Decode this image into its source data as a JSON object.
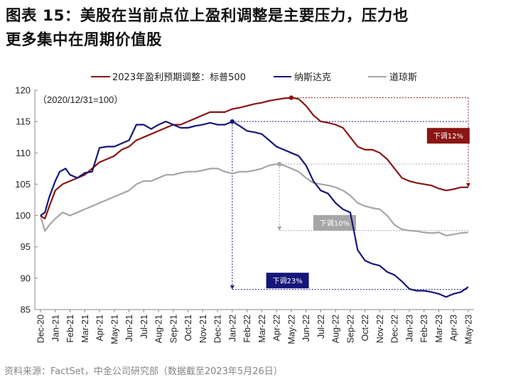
{
  "title": {
    "line1": "图表 15：美股在当前点位上盈利调整是主要压力，压力也",
    "line2": "更多集中在周期价值股"
  },
  "colors": {
    "sp500": "#8B1414",
    "nasdaq": "#16167A",
    "dow": "#A6A6A6"
  },
  "chart_data": {
    "type": "line",
    "title": "",
    "base_note": "（2020/12/31=100）",
    "ylim": [
      85,
      120
    ],
    "yticks": [
      85,
      90,
      95,
      100,
      105,
      110,
      115,
      120
    ],
    "xlabel": "",
    "ylabel": "",
    "x_tick_labels": [
      "Dec-20",
      "Jan-21",
      "Feb-21",
      "Mar-21",
      "Apr-21",
      "May-21",
      "Jun-21",
      "Jul-21",
      "Aug-21",
      "Sep-21",
      "Oct-21",
      "Nov-21",
      "Dec-21",
      "Jan-22",
      "Feb-22",
      "Mar-22",
      "Apr-22",
      "May-22",
      "Jun-22",
      "Jul-22",
      "Aug-22",
      "Sep-22",
      "Oct-22",
      "Nov-22",
      "Dec-22",
      "Jan-23",
      "Feb-23",
      "Mar-23",
      "Apr-23",
      "May-23"
    ],
    "legend_position": "top",
    "series": [
      {
        "name": "2023年盈利预期调整：标普500",
        "color_key": "sp500",
        "points": [
          [
            0,
            100
          ],
          [
            0.3,
            99.5
          ],
          [
            0.6,
            101.5
          ],
          [
            1,
            104
          ],
          [
            1.5,
            105
          ],
          [
            2,
            105.5
          ],
          [
            2.5,
            106
          ],
          [
            3,
            106.5
          ],
          [
            3.5,
            107.5
          ],
          [
            4,
            108.5
          ],
          [
            4.5,
            109
          ],
          [
            5,
            109.5
          ],
          [
            5.5,
            110.5
          ],
          [
            6,
            111
          ],
          [
            6.5,
            112
          ],
          [
            7,
            112.5
          ],
          [
            7.5,
            113
          ],
          [
            8,
            113.5
          ],
          [
            8.5,
            114
          ],
          [
            9,
            114.5
          ],
          [
            9.5,
            114.5
          ],
          [
            10,
            115
          ],
          [
            10.5,
            115.5
          ],
          [
            11,
            116
          ],
          [
            11.5,
            116.5
          ],
          [
            12,
            116.5
          ],
          [
            12.5,
            116.5
          ],
          [
            13,
            117
          ],
          [
            13.5,
            117.2
          ],
          [
            14,
            117.5
          ],
          [
            14.5,
            117.8
          ],
          [
            15,
            118
          ],
          [
            15.5,
            118.3
          ],
          [
            16,
            118.5
          ],
          [
            16.5,
            118.7
          ],
          [
            17,
            118.8
          ],
          [
            17.5,
            118.6
          ],
          [
            18,
            117.5
          ],
          [
            18.5,
            116
          ],
          [
            19,
            115
          ],
          [
            19.5,
            114.8
          ],
          [
            20,
            114.5
          ],
          [
            20.5,
            114
          ],
          [
            21,
            112.5
          ],
          [
            21.5,
            111
          ],
          [
            22,
            110.5
          ],
          [
            22.5,
            110.5
          ],
          [
            23,
            110
          ],
          [
            23.5,
            109
          ],
          [
            24,
            107.5
          ],
          [
            24.5,
            106
          ],
          [
            25,
            105.5
          ],
          [
            25.5,
            105.2
          ],
          [
            26,
            105
          ],
          [
            26.5,
            104.8
          ],
          [
            27,
            104.3
          ],
          [
            27.5,
            104
          ],
          [
            28,
            104.2
          ],
          [
            28.5,
            104.5
          ],
          [
            29,
            104.5
          ]
        ]
      },
      {
        "name": "纳斯达克",
        "color_key": "nasdaq",
        "points": [
          [
            0,
            100
          ],
          [
            0.3,
            100.5
          ],
          [
            0.6,
            103
          ],
          [
            1,
            105.5
          ],
          [
            1.3,
            107
          ],
          [
            1.7,
            107.5
          ],
          [
            2,
            106.5
          ],
          [
            2.5,
            106
          ],
          [
            3,
            106.8
          ],
          [
            3.5,
            107
          ],
          [
            4,
            110.8
          ],
          [
            4.5,
            111
          ],
          [
            5,
            111
          ],
          [
            5.5,
            111.5
          ],
          [
            6,
            112
          ],
          [
            6.5,
            114.5
          ],
          [
            7,
            114.5
          ],
          [
            7.5,
            113.8
          ],
          [
            8,
            114.5
          ],
          [
            8.5,
            115
          ],
          [
            9,
            114.5
          ],
          [
            9.5,
            114
          ],
          [
            10,
            114
          ],
          [
            10.5,
            114.3
          ],
          [
            11,
            114.5
          ],
          [
            11.5,
            114.8
          ],
          [
            12,
            114.5
          ],
          [
            12.5,
            114.5
          ],
          [
            13,
            115
          ],
          [
            13.5,
            114.3
          ],
          [
            14,
            113.5
          ],
          [
            14.5,
            113.3
          ],
          [
            15,
            113
          ],
          [
            15.5,
            112
          ],
          [
            16,
            111
          ],
          [
            16.5,
            110.5
          ],
          [
            17,
            110
          ],
          [
            17.5,
            109.5
          ],
          [
            18,
            108
          ],
          [
            18.5,
            105.5
          ],
          [
            19,
            104
          ],
          [
            19.5,
            103.5
          ],
          [
            20,
            102
          ],
          [
            20.5,
            101
          ],
          [
            21,
            100.5
          ],
          [
            21.5,
            94.5
          ],
          [
            22,
            92.8
          ],
          [
            22.5,
            92.3
          ],
          [
            23,
            92
          ],
          [
            23.5,
            91
          ],
          [
            24,
            90.5
          ],
          [
            24.5,
            89.5
          ],
          [
            25,
            88.3
          ],
          [
            25.5,
            88
          ],
          [
            26,
            88
          ],
          [
            26.5,
            87.8
          ],
          [
            27,
            87.5
          ],
          [
            27.5,
            87
          ],
          [
            28,
            87.5
          ],
          [
            28.5,
            87.8
          ],
          [
            29,
            88.6
          ]
        ]
      },
      {
        "name": "道琼斯",
        "color_key": "dow",
        "points": [
          [
            0,
            100
          ],
          [
            0.3,
            97.5
          ],
          [
            0.6,
            98.5
          ],
          [
            1,
            99.5
          ],
          [
            1.5,
            100.5
          ],
          [
            2,
            100
          ],
          [
            2.5,
            100.5
          ],
          [
            3,
            101
          ],
          [
            3.5,
            101.5
          ],
          [
            4,
            102
          ],
          [
            4.5,
            102.5
          ],
          [
            5,
            103
          ],
          [
            5.5,
            103.5
          ],
          [
            6,
            104
          ],
          [
            6.5,
            105
          ],
          [
            7,
            105.5
          ],
          [
            7.5,
            105.5
          ],
          [
            8,
            106
          ],
          [
            8.5,
            106.5
          ],
          [
            9,
            106.5
          ],
          [
            9.5,
            106.8
          ],
          [
            10,
            107
          ],
          [
            10.5,
            107
          ],
          [
            11,
            107.2
          ],
          [
            11.5,
            107.5
          ],
          [
            12,
            107.5
          ],
          [
            12.5,
            107
          ],
          [
            13,
            106.7
          ],
          [
            13.5,
            107
          ],
          [
            14,
            107
          ],
          [
            14.5,
            107.2
          ],
          [
            15,
            107.5
          ],
          [
            15.5,
            108
          ],
          [
            16,
            108.2
          ],
          [
            16.5,
            108
          ],
          [
            17,
            107.5
          ],
          [
            17.5,
            107
          ],
          [
            18,
            106
          ],
          [
            18.5,
            105.2
          ],
          [
            19,
            105
          ],
          [
            19.5,
            104.8
          ],
          [
            20,
            104.5
          ],
          [
            20.5,
            104
          ],
          [
            21,
            103.2
          ],
          [
            21.5,
            102
          ],
          [
            22,
            101.5
          ],
          [
            22.5,
            101.2
          ],
          [
            23,
            101
          ],
          [
            23.5,
            100
          ],
          [
            24,
            98.5
          ],
          [
            24.5,
            97.8
          ],
          [
            25,
            97.6
          ],
          [
            25.5,
            97.5
          ],
          [
            26,
            97.3
          ],
          [
            26.5,
            97.2
          ],
          [
            27,
            97.3
          ],
          [
            27.5,
            96.8
          ],
          [
            28,
            97
          ],
          [
            28.5,
            97.2
          ],
          [
            29,
            97.3
          ]
        ]
      }
    ],
    "annotations": [
      {
        "label": "下调12%",
        "color_key": "sp500",
        "from": [
          17,
          118.8
        ],
        "to": [
          29,
          104.5
        ],
        "box_x": 26.2,
        "box_y": 112.5
      },
      {
        "label": "下调10%",
        "color_key": "dow",
        "from": [
          16.2,
          108.2
        ],
        "to": [
          29,
          97.6
        ],
        "box_x": 18.5,
        "box_y": 98.6
      },
      {
        "label": "下调23%",
        "color_key": "nasdaq",
        "from": [
          13,
          115
        ],
        "to": [
          29,
          88.2
        ],
        "box_x": 15.3,
        "box_y": 89.4
      }
    ]
  },
  "footer": "资料来源：FactSet，中金公司研究部（数据截至2023年5月26日）"
}
